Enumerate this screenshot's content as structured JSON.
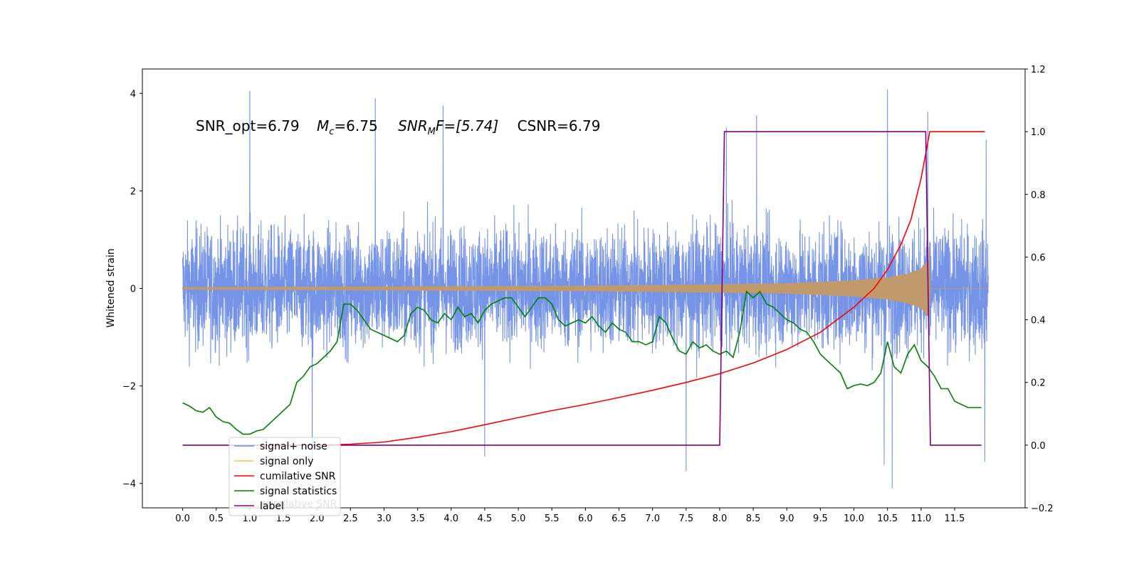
{
  "chart_data": {
    "type": "line",
    "annotation": {
      "snr_opt": "SNR_opt=6.79",
      "mc_sym": "M",
      "mc_sub": "c",
      "mc_val": "=6.75",
      "mf_sym": "SNR",
      "mf_sub": "M",
      "mf_val": "F=[5.74]",
      "csnr": "CSNR=6.79"
    },
    "ylabel": "Whitened strain",
    "xlim": [
      -0.6,
      12.55
    ],
    "ylim_left": [
      -4.5,
      4.5
    ],
    "ylim_right": [
      -0.2,
      1.2
    ],
    "x_ticks": [
      "0.0",
      "0.5",
      "1.0",
      "1.5",
      "2.0",
      "2.5",
      "3.0",
      "3.5",
      "4.0",
      "4.5",
      "5.0",
      "5.5",
      "6.0",
      "6.5",
      "7.0",
      "7.5",
      "8.0",
      "8.5",
      "9.0",
      "9.5",
      "10.0",
      "10.5",
      "11.0",
      "11.5"
    ],
    "y_ticks_left": [
      "4",
      "2",
      "0",
      "−2",
      "−4"
    ],
    "y_ticks_right": [
      "1.2",
      "1.0",
      "0.8",
      "0.6",
      "0.4",
      "0.2",
      "0.0",
      "−0.2"
    ],
    "colors": {
      "noise": "#6f8ee6",
      "signal": "#ffbf5a",
      "csnr": "#ff0000",
      "stat": "#008000",
      "label": "#800080",
      "overlap": "#c19a6b"
    },
    "series": [
      {
        "name": "signal+ noise",
        "axis": "left",
        "x_range": [
          0.0,
          12.0
        ],
        "band_normal": [
          -2.0,
          2.0
        ],
        "spikes": [
          {
            "x": 1.0,
            "y": 4.05
          },
          {
            "x": 1.93,
            "y": -3.55
          },
          {
            "x": 2.87,
            "y": 3.9
          },
          {
            "x": 3.88,
            "y": 3.75
          },
          {
            "x": 4.5,
            "y": -3.45
          },
          {
            "x": 7.5,
            "y": -3.75
          },
          {
            "x": 8.1,
            "y": 3.3
          },
          {
            "x": 8.55,
            "y": 3.55
          },
          {
            "x": 10.45,
            "y": -3.62
          },
          {
            "x": 10.5,
            "y": 4.08
          },
          {
            "x": 10.57,
            "y": -4.1
          },
          {
            "x": 11.1,
            "y": 3.62
          },
          {
            "x": 11.95,
            "y": -3.55
          },
          {
            "x": 11.97,
            "y": 3.05
          }
        ]
      },
      {
        "name": "signal only",
        "axis": "left",
        "envelope": [
          [
            0.0,
            0.02
          ],
          [
            4.0,
            0.04
          ],
          [
            6.0,
            0.05
          ],
          [
            8.0,
            0.08
          ],
          [
            9.0,
            0.1
          ],
          [
            10.0,
            0.16
          ],
          [
            10.5,
            0.22
          ],
          [
            10.8,
            0.3
          ],
          [
            11.0,
            0.4
          ],
          [
            11.12,
            0.6
          ],
          [
            11.14,
            0.0
          ],
          [
            12.0,
            0.0
          ]
        ]
      },
      {
        "name": "cumilative SNR",
        "axis": "right",
        "points": [
          [
            1.0,
            0.0
          ],
          [
            2.0,
            0.0
          ],
          [
            2.5,
            0.003
          ],
          [
            3.0,
            0.01
          ],
          [
            3.5,
            0.025
          ],
          [
            4.0,
            0.043
          ],
          [
            4.5,
            0.065
          ],
          [
            5.0,
            0.088
          ],
          [
            5.5,
            0.11
          ],
          [
            6.0,
            0.13
          ],
          [
            6.5,
            0.152
          ],
          [
            7.0,
            0.175
          ],
          [
            7.5,
            0.2
          ],
          [
            8.0,
            0.228
          ],
          [
            8.5,
            0.262
          ],
          [
            9.0,
            0.305
          ],
          [
            9.5,
            0.36
          ],
          [
            10.0,
            0.44
          ],
          [
            10.3,
            0.5
          ],
          [
            10.5,
            0.56
          ],
          [
            10.7,
            0.64
          ],
          [
            10.85,
            0.72
          ],
          [
            11.0,
            0.85
          ],
          [
            11.07,
            0.93
          ],
          [
            11.13,
            1.0
          ],
          [
            11.95,
            1.0
          ]
        ]
      },
      {
        "name": "signal statistics",
        "axis": "right",
        "points": [
          [
            0.0,
            0.135
          ],
          [
            0.1,
            0.125
          ],
          [
            0.2,
            0.11
          ],
          [
            0.3,
            0.105
          ],
          [
            0.4,
            0.12
          ],
          [
            0.5,
            0.09
          ],
          [
            0.6,
            0.075
          ],
          [
            0.7,
            0.07
          ],
          [
            0.8,
            0.05
          ],
          [
            0.9,
            0.035
          ],
          [
            1.0,
            0.035
          ],
          [
            1.1,
            0.045
          ],
          [
            1.2,
            0.05
          ],
          [
            1.3,
            0.07
          ],
          [
            1.4,
            0.09
          ],
          [
            1.5,
            0.11
          ],
          [
            1.6,
            0.13
          ],
          [
            1.7,
            0.2
          ],
          [
            1.8,
            0.22
          ],
          [
            1.9,
            0.25
          ],
          [
            2.0,
            0.26
          ],
          [
            2.1,
            0.28
          ],
          [
            2.2,
            0.3
          ],
          [
            2.3,
            0.33
          ],
          [
            2.4,
            0.45
          ],
          [
            2.5,
            0.45
          ],
          [
            2.6,
            0.43
          ],
          [
            2.7,
            0.4
          ],
          [
            2.8,
            0.37
          ],
          [
            2.9,
            0.36
          ],
          [
            3.0,
            0.35
          ],
          [
            3.1,
            0.34
          ],
          [
            3.2,
            0.33
          ],
          [
            3.3,
            0.35
          ],
          [
            3.4,
            0.42
          ],
          [
            3.5,
            0.44
          ],
          [
            3.6,
            0.43
          ],
          [
            3.7,
            0.4
          ],
          [
            3.8,
            0.39
          ],
          [
            3.9,
            0.42
          ],
          [
            4.0,
            0.4
          ],
          [
            4.1,
            0.44
          ],
          [
            4.2,
            0.41
          ],
          [
            4.3,
            0.42
          ],
          [
            4.4,
            0.39
          ],
          [
            4.5,
            0.43
          ],
          [
            4.6,
            0.45
          ],
          [
            4.7,
            0.46
          ],
          [
            4.8,
            0.47
          ],
          [
            4.9,
            0.47
          ],
          [
            5.0,
            0.44
          ],
          [
            5.1,
            0.41
          ],
          [
            5.2,
            0.44
          ],
          [
            5.3,
            0.47
          ],
          [
            5.4,
            0.47
          ],
          [
            5.5,
            0.45
          ],
          [
            5.6,
            0.4
          ],
          [
            5.7,
            0.38
          ],
          [
            5.8,
            0.39
          ],
          [
            5.9,
            0.4
          ],
          [
            6.0,
            0.39
          ],
          [
            6.1,
            0.41
          ],
          [
            6.2,
            0.38
          ],
          [
            6.3,
            0.36
          ],
          [
            6.4,
            0.39
          ],
          [
            6.5,
            0.37
          ],
          [
            6.6,
            0.36
          ],
          [
            6.7,
            0.33
          ],
          [
            6.8,
            0.33
          ],
          [
            6.9,
            0.32
          ],
          [
            7.0,
            0.33
          ],
          [
            7.1,
            0.41
          ],
          [
            7.2,
            0.39
          ],
          [
            7.3,
            0.34
          ],
          [
            7.4,
            0.3
          ],
          [
            7.5,
            0.29
          ],
          [
            7.6,
            0.33
          ],
          [
            7.7,
            0.31
          ],
          [
            7.8,
            0.32
          ],
          [
            7.9,
            0.3
          ],
          [
            8.0,
            0.29
          ],
          [
            8.1,
            0.3
          ],
          [
            8.2,
            0.28
          ],
          [
            8.3,
            0.36
          ],
          [
            8.4,
            0.49
          ],
          [
            8.5,
            0.47
          ],
          [
            8.6,
            0.49
          ],
          [
            8.7,
            0.45
          ],
          [
            8.8,
            0.44
          ],
          [
            8.9,
            0.42
          ],
          [
            9.0,
            0.4
          ],
          [
            9.1,
            0.39
          ],
          [
            9.2,
            0.37
          ],
          [
            9.3,
            0.36
          ],
          [
            9.4,
            0.33
          ],
          [
            9.5,
            0.29
          ],
          [
            9.6,
            0.27
          ],
          [
            9.7,
            0.25
          ],
          [
            9.8,
            0.23
          ],
          [
            9.9,
            0.18
          ],
          [
            10.0,
            0.19
          ],
          [
            10.1,
            0.195
          ],
          [
            10.2,
            0.19
          ],
          [
            10.3,
            0.2
          ],
          [
            10.4,
            0.23
          ],
          [
            10.5,
            0.33
          ],
          [
            10.6,
            0.25
          ],
          [
            10.7,
            0.23
          ],
          [
            10.8,
            0.29
          ],
          [
            10.9,
            0.32
          ],
          [
            11.0,
            0.27
          ],
          [
            11.1,
            0.25
          ],
          [
            11.2,
            0.22
          ],
          [
            11.3,
            0.18
          ],
          [
            11.4,
            0.18
          ],
          [
            11.5,
            0.14
          ],
          [
            11.6,
            0.13
          ],
          [
            11.7,
            0.12
          ],
          [
            11.8,
            0.12
          ],
          [
            11.9,
            0.12
          ]
        ]
      },
      {
        "name": "label",
        "axis": "right",
        "points": [
          [
            0.0,
            0.0
          ],
          [
            8.0,
            0.0
          ],
          [
            8.07,
            1.0
          ],
          [
            11.07,
            1.0
          ],
          [
            11.14,
            0.0
          ],
          [
            11.9,
            0.0
          ]
        ]
      }
    ],
    "legend": {
      "position": "lower-left",
      "entries": [
        "signal+ noise",
        "signal only",
        "cumilative SNR",
        "signal statistics",
        "label"
      ],
      "ghost_text": "cumilative SNR"
    }
  }
}
